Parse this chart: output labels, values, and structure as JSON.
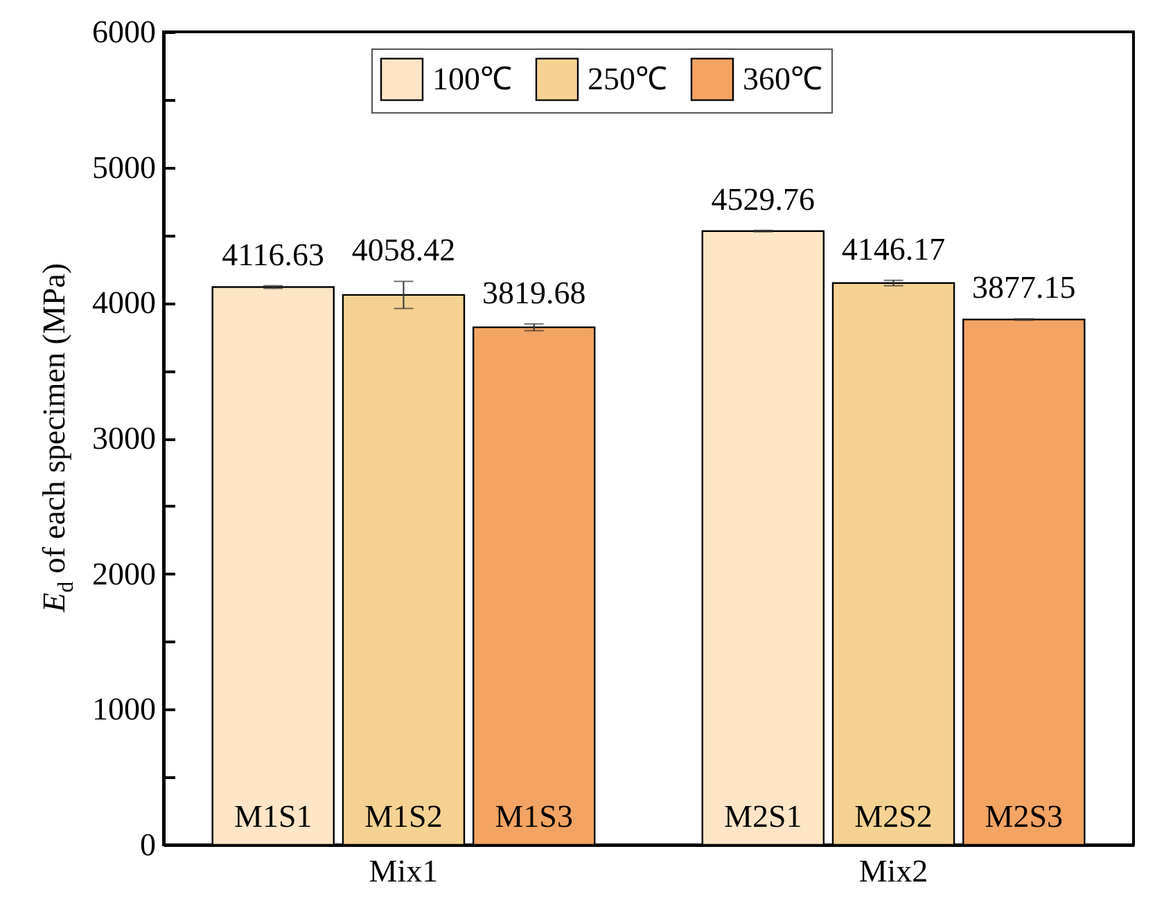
{
  "chart_data": {
    "type": "bar",
    "ylabel": "E$_{d}$ of each specimen (MPa)",
    "categories": [
      "Mix1",
      "Mix2"
    ],
    "series": [
      {
        "name": "100℃",
        "color": "#fde5c5",
        "values": [
          4116.63,
          4529.76
        ],
        "errors": [
          10,
          5
        ]
      },
      {
        "name": "250℃",
        "color": "#f5d292",
        "values": [
          4058.42,
          4146.17
        ],
        "errors": [
          100,
          20
        ]
      },
      {
        "name": "360℃",
        "color": "#f4a462",
        "values": [
          3819.68,
          3877.15
        ],
        "errors": [
          25,
          5
        ]
      }
    ],
    "data_labels": true,
    "ylim": [
      0,
      6000
    ],
    "yticks": [
      0,
      {
        "value": 500,
        "label": null
      },
      1000,
      {
        "value": 1500,
        "label": null
      },
      2000,
      {
        "value": 2500,
        "label": null
      },
      3000,
      {
        "value": 3500,
        "label": null
      },
      4000,
      {
        "value": 4500,
        "label": null
      },
      5000,
      {
        "value": 5500,
        "label": null
      },
      6000
    ],
    "annotations": [
      {
        "text": "M1S1",
        "x": "Mix1",
        "y": 0
      },
      {
        "text": "M1S2",
        "x": "Mix1",
        "y": 0
      },
      {
        "text": "M1S3",
        "x": "Mix1",
        "y": 0
      },
      {
        "text": "M2S1",
        "x": "Mix2",
        "y": 0
      },
      {
        "text": "M2S2",
        "x": "Mix2",
        "y": 0
      },
      {
        "text": "M2S3",
        "x": "Mix2",
        "y": 0
      }
    ],
    "legend": "top",
    "grid": false
  }
}
